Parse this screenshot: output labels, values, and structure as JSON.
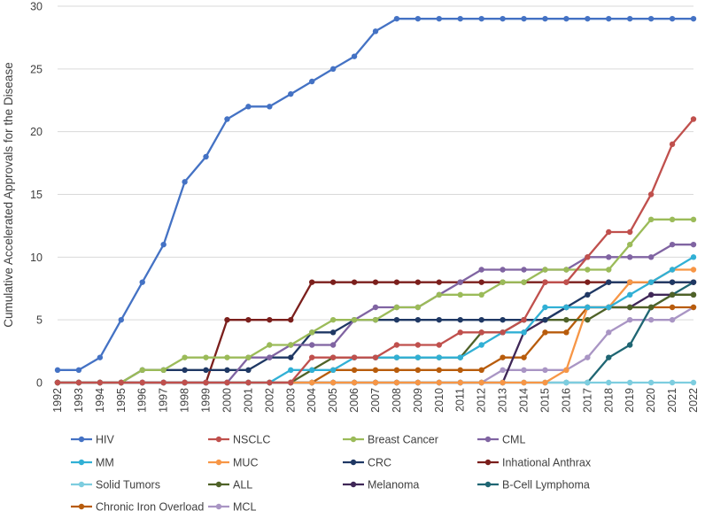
{
  "chart_data": {
    "type": "line",
    "title": "",
    "xlabel": "",
    "ylabel": "Cumulative Accelerated Approvals for the Disease",
    "ylim": [
      0,
      30
    ],
    "yticks": [
      0,
      5,
      10,
      15,
      20,
      25,
      30
    ],
    "grid": "horizontal",
    "legend_position": "bottom",
    "categories": [
      "1992",
      "1993",
      "1994",
      "1995",
      "1996",
      "1997",
      "1998",
      "1999",
      "2000",
      "2001",
      "2002",
      "2003",
      "2004",
      "2005",
      "2006",
      "2007",
      "2008",
      "2009",
      "2010",
      "2011",
      "2012",
      "2013",
      "2014",
      "2015",
      "2016",
      "2017",
      "2018",
      "2019",
      "2020",
      "2021",
      "2022"
    ],
    "series": [
      {
        "name": "HIV",
        "color": "#4472C4",
        "values": [
          1,
          1,
          2,
          5,
          8,
          11,
          16,
          18,
          21,
          22,
          22,
          23,
          24,
          25,
          26,
          28,
          29,
          29,
          29,
          29,
          29,
          29,
          29,
          29,
          29,
          29,
          29,
          29,
          29,
          29,
          29
        ]
      },
      {
        "name": "NSCLC",
        "color": "#C0504D",
        "values": [
          0,
          0,
          0,
          0,
          0,
          0,
          0,
          0,
          0,
          0,
          0,
          0,
          2,
          2,
          2,
          2,
          3,
          3,
          3,
          4,
          4,
          4,
          5,
          8,
          8,
          10,
          12,
          12,
          15,
          19,
          21
        ]
      },
      {
        "name": "Breast Cancer",
        "color": "#9BBB59",
        "values": [
          0,
          0,
          0,
          0,
          1,
          1,
          2,
          2,
          2,
          2,
          3,
          3,
          4,
          5,
          5,
          5,
          6,
          6,
          7,
          7,
          7,
          8,
          8,
          9,
          9,
          9,
          9,
          11,
          13,
          13,
          13
        ]
      },
      {
        "name": "CML",
        "color": "#8064A2",
        "values": [
          0,
          0,
          0,
          0,
          0,
          0,
          0,
          0,
          0,
          2,
          2,
          3,
          3,
          3,
          5,
          6,
          6,
          6,
          7,
          8,
          9,
          9,
          9,
          9,
          9,
          10,
          10,
          10,
          10,
          11,
          11
        ]
      },
      {
        "name": "MM",
        "color": "#31B0D5",
        "values": [
          0,
          0,
          0,
          0,
          0,
          0,
          0,
          0,
          0,
          0,
          0,
          1,
          1,
          1,
          2,
          2,
          2,
          2,
          2,
          2,
          3,
          4,
          4,
          6,
          6,
          6,
          6,
          7,
          8,
          9,
          10
        ]
      },
      {
        "name": "MUC",
        "color": "#F79646",
        "values": [
          0,
          0,
          0,
          0,
          0,
          0,
          0,
          0,
          0,
          0,
          0,
          0,
          0,
          0,
          0,
          0,
          0,
          0,
          0,
          0,
          0,
          0,
          0,
          0,
          1,
          6,
          6,
          8,
          8,
          9,
          9
        ]
      },
      {
        "name": "CRC",
        "color": "#1F3864",
        "values": [
          0,
          0,
          0,
          0,
          1,
          1,
          1,
          1,
          1,
          1,
          2,
          2,
          4,
          4,
          5,
          5,
          5,
          5,
          5,
          5,
          5,
          5,
          5,
          5,
          6,
          7,
          8,
          8,
          8,
          8,
          8
        ]
      },
      {
        "name": "Inhational Anthrax",
        "color": "#7B1F1C",
        "values": [
          0,
          0,
          0,
          0,
          0,
          0,
          0,
          0,
          5,
          5,
          5,
          5,
          8,
          8,
          8,
          8,
          8,
          8,
          8,
          8,
          8,
          8,
          8,
          8,
          8,
          8,
          8,
          8,
          8,
          8,
          8
        ]
      },
      {
        "name": "Solid Tumors",
        "color": "#7DCDDF",
        "values": [
          0,
          0,
          0,
          0,
          0,
          0,
          0,
          0,
          0,
          0,
          0,
          0,
          0,
          0,
          0,
          0,
          0,
          0,
          0,
          0,
          0,
          0,
          0,
          0,
          0,
          0,
          0,
          0,
          0,
          0,
          0
        ]
      },
      {
        "name": "ALL",
        "color": "#4F6228",
        "values": [
          0,
          0,
          0,
          0,
          0,
          0,
          0,
          0,
          0,
          0,
          0,
          0,
          1,
          2,
          2,
          2,
          2,
          2,
          2,
          2,
          4,
          4,
          5,
          5,
          5,
          5,
          6,
          6,
          6,
          7,
          7
        ]
      },
      {
        "name": "Melanoma",
        "color": "#3F2757",
        "values": [
          0,
          0,
          0,
          0,
          0,
          0,
          0,
          0,
          0,
          0,
          0,
          0,
          0,
          0,
          0,
          0,
          0,
          0,
          0,
          0,
          0,
          0,
          4,
          5,
          6,
          6,
          6,
          6,
          7,
          7,
          7
        ]
      },
      {
        "name": "B-Cell Lymphoma",
        "color": "#1F6673",
        "values": [
          0,
          0,
          0,
          0,
          0,
          0,
          0,
          0,
          0,
          0,
          0,
          0,
          0,
          0,
          0,
          0,
          0,
          0,
          0,
          0,
          0,
          0,
          0,
          0,
          0,
          0,
          2,
          3,
          6,
          7,
          8
        ]
      },
      {
        "name": "Chronic Iron Overload",
        "color": "#B85C0C",
        "values": [
          0,
          0,
          0,
          0,
          0,
          0,
          0,
          0,
          0,
          0,
          0,
          0,
          0,
          1,
          1,
          1,
          1,
          1,
          1,
          1,
          1,
          2,
          2,
          4,
          4,
          6,
          6,
          6,
          6,
          6,
          6
        ]
      },
      {
        "name": "MCL",
        "color": "#A995C4",
        "values": [
          0,
          0,
          0,
          0,
          0,
          0,
          0,
          0,
          0,
          0,
          0,
          0,
          0,
          0,
          0,
          0,
          0,
          0,
          0,
          0,
          0,
          1,
          1,
          1,
          1,
          2,
          4,
          5,
          5,
          5,
          6
        ]
      }
    ]
  }
}
